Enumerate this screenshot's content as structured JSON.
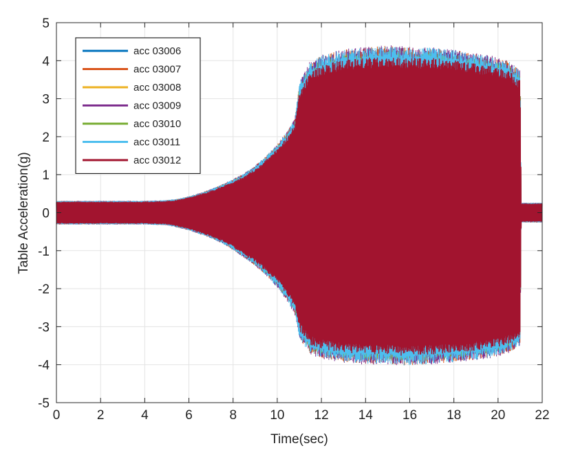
{
  "chart_data": {
    "type": "line",
    "title": "",
    "xlabel": "Time(sec)",
    "ylabel": "Table Acceleration(g)",
    "xlim": [
      0,
      22
    ],
    "ylim": [
      -5,
      5
    ],
    "x_ticks": [
      0,
      2,
      4,
      6,
      8,
      10,
      12,
      14,
      16,
      18,
      20,
      22
    ],
    "y_ticks": [
      -5,
      -4,
      -3,
      -2,
      -1,
      0,
      1,
      2,
      3,
      4,
      5
    ],
    "grid": true,
    "legend_position": "top-left",
    "envelope": {
      "x": [
        0.0,
        0.5,
        1.0,
        2.0,
        3.0,
        4.0,
        5.0,
        5.5,
        6.0,
        6.5,
        7.0,
        7.5,
        8.0,
        8.5,
        9.0,
        9.5,
        10.0,
        10.5,
        10.8,
        11.0,
        11.5,
        12.0,
        13.0,
        14.0,
        15.0,
        16.0,
        17.0,
        18.0,
        19.0,
        20.0,
        20.5,
        21.0,
        21.05,
        22.0
      ],
      "upper": [
        0.3,
        0.3,
        0.3,
        0.3,
        0.3,
        0.3,
        0.32,
        0.35,
        0.42,
        0.5,
        0.6,
        0.72,
        0.85,
        1.0,
        1.2,
        1.45,
        1.75,
        2.1,
        2.4,
        3.3,
        3.85,
        4.0,
        4.15,
        4.2,
        4.25,
        4.2,
        4.2,
        4.15,
        4.05,
        3.95,
        3.85,
        3.6,
        0.25,
        0.25
      ],
      "lower": [
        -0.3,
        -0.3,
        -0.3,
        -0.3,
        -0.3,
        -0.3,
        -0.32,
        -0.38,
        -0.45,
        -0.55,
        -0.65,
        -0.78,
        -0.95,
        -1.15,
        -1.35,
        -1.6,
        -1.9,
        -2.3,
        -2.6,
        -3.2,
        -3.6,
        -3.7,
        -3.8,
        -3.85,
        -3.85,
        -3.9,
        -3.85,
        -3.8,
        -3.75,
        -3.65,
        -3.55,
        -3.4,
        -0.25,
        -0.25
      ]
    },
    "series": [
      {
        "name": "acc 03006",
        "color": "#0072bd"
      },
      {
        "name": "acc 03007",
        "color": "#d95319"
      },
      {
        "name": "acc 03008",
        "color": "#edb120"
      },
      {
        "name": "acc 03009",
        "color": "#7e2f8e"
      },
      {
        "name": "acc 03010",
        "color": "#77ac30"
      },
      {
        "name": "acc 03011",
        "color": "#4dbeee"
      },
      {
        "name": "acc 03012",
        "color": "#a2142f"
      }
    ]
  }
}
